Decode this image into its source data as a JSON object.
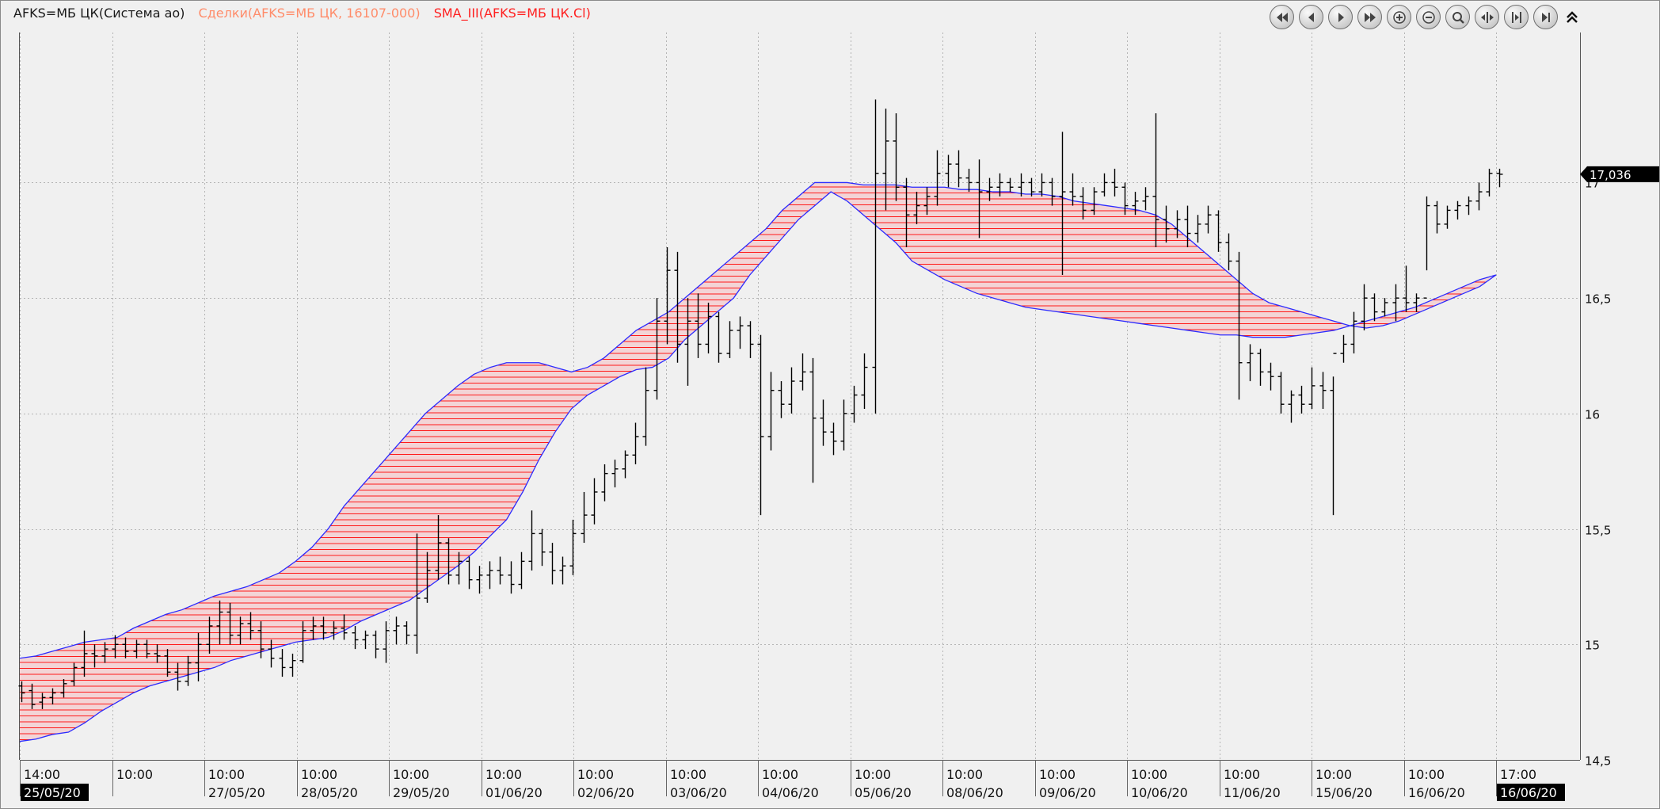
{
  "legend": {
    "main": "AFKS=МБ ЦК(Система ао)",
    "trades": "Сделки(AFKS=МБ ЦК, 16107-000)",
    "sma": "SMA_III(AFKS=МБ ЦК.Cl)"
  },
  "colors": {
    "background": "#f0f0f0",
    "grid": "#b4b4b4",
    "bar": "#000000",
    "band_edge": "#2b2bff",
    "band_fill": "#f3d4d6",
    "band_hatch": "#ff1a1a",
    "legend_main": "#1a1a1a",
    "legend_trades": "#ff8c6a",
    "legend_sma": "#ff2020",
    "label_bg": "#000000",
    "label_fg": "#ffffff"
  },
  "toolbar": {
    "buttons": [
      {
        "name": "scroll-begin-button",
        "icon": "double-left-arrow-icon"
      },
      {
        "name": "scroll-left-button",
        "icon": "left-arrow-icon"
      },
      {
        "name": "scroll-right-button",
        "icon": "right-arrow-icon"
      },
      {
        "name": "scroll-end-button",
        "icon": "double-right-arrow-icon"
      },
      {
        "name": "zoom-in-button",
        "icon": "plus-icon"
      },
      {
        "name": "zoom-out-button",
        "icon": "minus-icon"
      },
      {
        "name": "zoom-fit-button",
        "icon": "magnifier-icon"
      },
      {
        "name": "expand-button",
        "icon": "expand-icon"
      },
      {
        "name": "compress-button",
        "icon": "compress-icon"
      },
      {
        "name": "go-last-button",
        "icon": "arrow-bar-right-icon"
      }
    ],
    "collapse_icon": "double-chevron-up-icon"
  },
  "chart_data": {
    "type": "bar",
    "title": "",
    "ylim": [
      14.5,
      17.65
    ],
    "yticks": [
      {
        "value": 14.5,
        "label": "14,5"
      },
      {
        "value": 15,
        "label": "15"
      },
      {
        "value": 15.5,
        "label": "15,5"
      },
      {
        "value": 16,
        "label": "16"
      },
      {
        "value": 16.5,
        "label": "16,5"
      },
      {
        "value": 17,
        "label": "17"
      }
    ],
    "last_price": {
      "value": 17.036,
      "label": "17,036"
    },
    "grid": true,
    "x_sessions": [
      {
        "time": "14:00",
        "date": "25/05/20",
        "highlight": true
      },
      {
        "time": "10:00",
        "date": ""
      },
      {
        "time": "10:00",
        "date": "27/05/20"
      },
      {
        "time": "10:00",
        "date": "28/05/20"
      },
      {
        "time": "10:00",
        "date": "29/05/20"
      },
      {
        "time": "10:00",
        "date": "01/06/20"
      },
      {
        "time": "10:00",
        "date": "02/06/20"
      },
      {
        "time": "10:00",
        "date": "03/06/20"
      },
      {
        "time": "10:00",
        "date": "04/06/20"
      },
      {
        "time": "10:00",
        "date": "05/06/20"
      },
      {
        "time": "10:00",
        "date": "08/06/20"
      },
      {
        "time": "10:00",
        "date": "09/06/20"
      },
      {
        "time": "10:00",
        "date": "10/06/20"
      },
      {
        "time": "10:00",
        "date": "11/06/20"
      },
      {
        "time": "10:00",
        "date": "15/06/20"
      },
      {
        "time": "10:00",
        "date": "16/06/20"
      },
      {
        "time": "17:00",
        "date": "16/06/20",
        "highlight": true
      }
    ],
    "ohlc_bars": [
      [
        14.82,
        14.84,
        14.75,
        14.79
      ],
      [
        14.8,
        14.83,
        14.72,
        14.74
      ],
      [
        14.75,
        14.79,
        14.72,
        14.77
      ],
      [
        14.77,
        14.81,
        14.74,
        14.79
      ],
      [
        14.79,
        14.85,
        14.77,
        14.83
      ],
      [
        14.84,
        14.92,
        14.82,
        14.9
      ],
      [
        14.9,
        15.06,
        14.86,
        14.96
      ],
      [
        14.96,
        15.0,
        14.9,
        14.95
      ],
      [
        14.95,
        15.01,
        14.92,
        14.98
      ],
      [
        14.98,
        15.04,
        14.94,
        15.0
      ],
      [
        15.0,
        15.03,
        14.94,
        14.97
      ],
      [
        14.97,
        15.02,
        14.94,
        15.0
      ],
      [
        15.0,
        15.02,
        14.94,
        14.96
      ],
      [
        14.96,
        15.0,
        14.92,
        14.95
      ],
      [
        14.95,
        14.98,
        14.86,
        14.88
      ],
      [
        14.88,
        14.92,
        14.8,
        14.84
      ],
      [
        14.84,
        14.95,
        14.82,
        14.92
      ],
      [
        14.92,
        15.05,
        14.84,
        15.0
      ],
      [
        15.0,
        15.12,
        14.96,
        15.08
      ],
      [
        15.08,
        15.19,
        15.0,
        15.14
      ],
      [
        15.14,
        15.18,
        15.0,
        15.04
      ],
      [
        15.04,
        15.12,
        15.0,
        15.09
      ],
      [
        15.09,
        15.14,
        15.02,
        15.06
      ],
      [
        15.06,
        15.1,
        14.94,
        14.98
      ],
      [
        14.98,
        15.02,
        14.9,
        14.94
      ],
      [
        14.94,
        14.98,
        14.86,
        14.9
      ],
      [
        14.9,
        14.96,
        14.86,
        14.93
      ],
      [
        14.93,
        15.1,
        14.92,
        15.06
      ],
      [
        15.06,
        15.12,
        15.02,
        15.08
      ],
      [
        15.08,
        15.12,
        15.02,
        15.05
      ],
      [
        15.05,
        15.1,
        15.02,
        15.07
      ],
      [
        15.07,
        15.13,
        15.02,
        15.05
      ],
      [
        15.05,
        15.08,
        14.98,
        15.02
      ],
      [
        15.02,
        15.06,
        14.98,
        15.04
      ],
      [
        15.04,
        15.06,
        14.94,
        14.98
      ],
      [
        14.98,
        15.1,
        14.92,
        15.06
      ],
      [
        15.06,
        15.12,
        15.0,
        15.08
      ],
      [
        15.08,
        15.1,
        15.0,
        15.04
      ],
      [
        15.04,
        15.48,
        14.96,
        15.2
      ],
      [
        15.2,
        15.4,
        15.18,
        15.32
      ],
      [
        15.32,
        15.56,
        15.28,
        15.44
      ],
      [
        15.44,
        15.46,
        15.26,
        15.3
      ],
      [
        15.3,
        15.4,
        15.26,
        15.36
      ],
      [
        15.36,
        15.38,
        15.24,
        15.28
      ],
      [
        15.28,
        15.34,
        15.22,
        15.3
      ],
      [
        15.3,
        15.36,
        15.24,
        15.32
      ],
      [
        15.32,
        15.38,
        15.26,
        15.3
      ],
      [
        15.3,
        15.36,
        15.22,
        15.26
      ],
      [
        15.26,
        15.4,
        15.24,
        15.36
      ],
      [
        15.36,
        15.58,
        15.32,
        15.48
      ],
      [
        15.48,
        15.5,
        15.34,
        15.4
      ],
      [
        15.4,
        15.44,
        15.26,
        15.32
      ],
      [
        15.32,
        15.38,
        15.26,
        15.34
      ],
      [
        15.34,
        15.54,
        15.3,
        15.48
      ],
      [
        15.48,
        15.66,
        15.44,
        15.56
      ],
      [
        15.56,
        15.72,
        15.52,
        15.66
      ],
      [
        15.66,
        15.78,
        15.62,
        15.74
      ],
      [
        15.74,
        15.8,
        15.68,
        15.76
      ],
      [
        15.76,
        15.84,
        15.72,
        15.82
      ],
      [
        15.82,
        15.96,
        15.78,
        15.9
      ],
      [
        15.9,
        16.2,
        15.86,
        16.1
      ],
      [
        16.1,
        16.5,
        16.06,
        16.4
      ],
      [
        16.4,
        16.72,
        16.3,
        16.62
      ],
      [
        16.62,
        16.7,
        16.22,
        16.3
      ],
      [
        16.3,
        16.5,
        16.12,
        16.4
      ],
      [
        16.4,
        16.52,
        16.24,
        16.3
      ],
      [
        16.3,
        16.48,
        16.26,
        16.42
      ],
      [
        16.42,
        16.44,
        16.22,
        16.26
      ],
      [
        16.26,
        16.4,
        16.24,
        16.36
      ],
      [
        16.36,
        16.42,
        16.28,
        16.38
      ],
      [
        16.38,
        16.4,
        16.24,
        16.3
      ],
      [
        16.3,
        16.34,
        15.56,
        15.9
      ],
      [
        15.9,
        16.18,
        15.84,
        16.1
      ],
      [
        16.1,
        16.14,
        15.98,
        16.04
      ],
      [
        16.04,
        16.2,
        16.0,
        16.14
      ],
      [
        16.14,
        16.26,
        16.1,
        16.18
      ],
      [
        16.18,
        16.24,
        15.7,
        15.98
      ],
      [
        15.98,
        16.06,
        15.86,
        15.92
      ],
      [
        15.92,
        15.96,
        15.82,
        15.88
      ],
      [
        15.88,
        16.06,
        15.84,
        16.0
      ],
      [
        16.0,
        16.12,
        15.96,
        16.08
      ],
      [
        16.08,
        16.26,
        16.02,
        16.2
      ],
      [
        16.2,
        17.36,
        16.0,
        17.04
      ],
      [
        17.04,
        17.32,
        16.88,
        17.18
      ],
      [
        17.18,
        17.3,
        16.92,
        16.98
      ],
      [
        16.98,
        17.02,
        16.72,
        16.86
      ],
      [
        16.86,
        16.96,
        16.82,
        16.9
      ],
      [
        16.9,
        16.98,
        16.86,
        16.94
      ],
      [
        16.94,
        17.14,
        16.9,
        17.04
      ],
      [
        17.04,
        17.12,
        16.98,
        17.08
      ],
      [
        17.08,
        17.14,
        16.98,
        17.02
      ],
      [
        17.02,
        17.06,
        16.96,
        17.0
      ],
      [
        17.0,
        17.1,
        16.76,
        16.96
      ],
      [
        16.96,
        17.02,
        16.92,
        16.98
      ],
      [
        16.98,
        17.04,
        16.94,
        17.0
      ],
      [
        17.0,
        17.02,
        16.96,
        16.98
      ],
      [
        16.98,
        17.04,
        16.94,
        17.0
      ],
      [
        17.0,
        17.02,
        16.94,
        16.96
      ],
      [
        16.96,
        17.04,
        16.94,
        17.0
      ],
      [
        17.0,
        17.02,
        16.9,
        16.94
      ],
      [
        16.94,
        17.22,
        16.6,
        16.96
      ],
      [
        16.96,
        17.04,
        16.9,
        16.94
      ],
      [
        16.94,
        16.98,
        16.84,
        16.88
      ],
      [
        16.88,
        16.98,
        16.86,
        16.96
      ],
      [
        16.96,
        17.04,
        16.94,
        17.0
      ],
      [
        17.0,
        17.06,
        16.94,
        16.98
      ],
      [
        16.98,
        17.0,
        16.86,
        16.9
      ],
      [
        16.9,
        16.96,
        16.86,
        16.92
      ],
      [
        16.92,
        16.98,
        16.88,
        16.94
      ],
      [
        16.94,
        17.3,
        16.72,
        16.84
      ],
      [
        16.84,
        16.9,
        16.74,
        16.8
      ],
      [
        16.8,
        16.88,
        16.76,
        16.84
      ],
      [
        16.84,
        16.9,
        16.72,
        16.78
      ],
      [
        16.78,
        16.86,
        16.74,
        16.82
      ],
      [
        16.82,
        16.9,
        16.78,
        16.86
      ],
      [
        16.86,
        16.88,
        16.7,
        16.74
      ],
      [
        16.74,
        16.78,
        16.62,
        16.66
      ],
      [
        16.66,
        16.7,
        16.06,
        16.22
      ],
      [
        16.22,
        16.3,
        16.14,
        16.26
      ],
      [
        16.26,
        16.28,
        16.12,
        16.18
      ],
      [
        16.18,
        16.22,
        16.1,
        16.16
      ],
      [
        16.16,
        16.18,
        16.0,
        16.04
      ],
      [
        16.04,
        16.1,
        15.96,
        16.08
      ],
      [
        16.08,
        16.12,
        16.0,
        16.04
      ],
      [
        16.04,
        16.2,
        16.02,
        16.12
      ],
      [
        16.12,
        16.18,
        16.02,
        16.1
      ],
      [
        16.1,
        16.16,
        15.56,
        16.26
      ],
      [
        16.26,
        16.34,
        16.22,
        16.3
      ],
      [
        16.3,
        16.44,
        16.26,
        16.4
      ],
      [
        16.4,
        16.56,
        16.36,
        16.5
      ],
      [
        16.5,
        16.52,
        16.4,
        16.44
      ],
      [
        16.44,
        16.5,
        16.42,
        16.48
      ],
      [
        16.48,
        16.56,
        16.4,
        16.5
      ],
      [
        16.5,
        16.64,
        16.44,
        16.48
      ],
      [
        16.48,
        16.52,
        16.44,
        16.5
      ],
      [
        16.5,
        16.94,
        16.62,
        16.9
      ],
      [
        16.9,
        16.92,
        16.78,
        16.82
      ],
      [
        16.82,
        16.9,
        16.8,
        16.88
      ],
      [
        16.88,
        16.92,
        16.84,
        16.9
      ],
      [
        16.9,
        16.94,
        16.86,
        16.92
      ],
      [
        16.92,
        17.0,
        16.88,
        16.96
      ],
      [
        16.96,
        17.06,
        16.94,
        17.04
      ],
      [
        17.04,
        17.06,
        16.98,
        17.036
      ]
    ],
    "band": {
      "upper_label": "fast",
      "fast": [
        14.94,
        14.95,
        14.97,
        14.99,
        15.01,
        15.02,
        15.03,
        15.07,
        15.1,
        15.13,
        15.15,
        15.18,
        15.21,
        15.23,
        15.25,
        15.28,
        15.31,
        15.36,
        15.42,
        15.5,
        15.6,
        15.68,
        15.76,
        15.84,
        15.92,
        16.0,
        16.06,
        16.12,
        16.17,
        16.2,
        16.22,
        16.22,
        16.22,
        16.2,
        16.18,
        16.2,
        16.24,
        16.3,
        16.36,
        16.4,
        16.44,
        16.5,
        16.56,
        16.62,
        16.68,
        16.74,
        16.8,
        16.88,
        16.94,
        17.0,
        17.0,
        17.0,
        16.99,
        16.99,
        16.99,
        16.98,
        16.98,
        16.98,
        16.97,
        16.97,
        16.96,
        16.96,
        16.95,
        16.95,
        16.94,
        16.92,
        16.91,
        16.9,
        16.89,
        16.88,
        16.86,
        16.82,
        16.76,
        16.7,
        16.64,
        16.58,
        16.52,
        16.48,
        16.46,
        16.44,
        16.42,
        16.4,
        16.38,
        16.37,
        16.38,
        16.4,
        16.43,
        16.46,
        16.49,
        16.52,
        16.55,
        16.6
      ],
      "slow": [
        14.58,
        14.59,
        14.61,
        14.62,
        14.66,
        14.71,
        14.75,
        14.79,
        14.82,
        14.84,
        14.86,
        14.88,
        14.9,
        14.93,
        14.95,
        14.97,
        14.99,
        15.01,
        15.02,
        15.03,
        15.06,
        15.1,
        15.13,
        15.16,
        15.19,
        15.24,
        15.29,
        15.34,
        15.4,
        15.47,
        15.54,
        15.66,
        15.8,
        15.92,
        16.02,
        16.08,
        16.12,
        16.16,
        16.19,
        16.2,
        16.24,
        16.32,
        16.38,
        16.44,
        16.5,
        16.6,
        16.68,
        16.76,
        16.84,
        16.9,
        16.96,
        16.92,
        16.86,
        16.8,
        16.74,
        16.66,
        16.62,
        16.58,
        16.55,
        16.52,
        16.5,
        16.48,
        16.46,
        16.45,
        16.44,
        16.43,
        16.42,
        16.41,
        16.4,
        16.39,
        16.38,
        16.37,
        16.36,
        16.35,
        16.34,
        16.34,
        16.33,
        16.33,
        16.33,
        16.34,
        16.35,
        16.36,
        16.38,
        16.4,
        16.42,
        16.44,
        16.46,
        16.49,
        16.52,
        16.55,
        16.58,
        16.6
      ],
      "dates_count": 92
    }
  }
}
